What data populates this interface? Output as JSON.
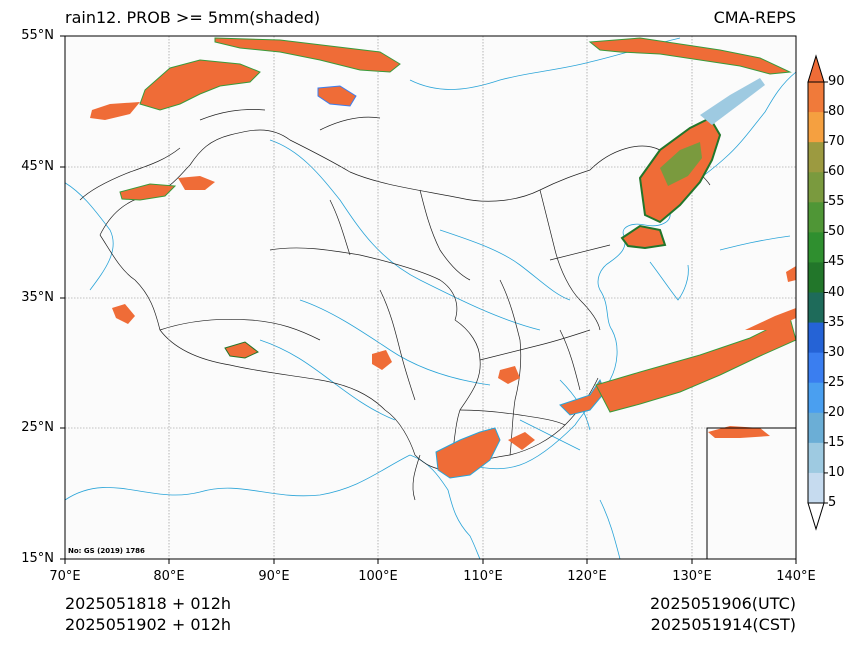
{
  "header": {
    "title": "rain12. PROB >= 5mm(shaded)",
    "model": "CMA-REPS"
  },
  "map": {
    "lat_ticks": [
      "55°N",
      "45°N",
      "35°N",
      "25°N",
      "15°N"
    ],
    "lon_ticks": [
      "70°E",
      "80°E",
      "90°E",
      "100°E",
      "110°E",
      "120°E",
      "130°E",
      "140°E"
    ],
    "extent": {
      "lon": [
        70,
        140
      ],
      "lat": [
        15,
        55
      ]
    },
    "gridlines": true,
    "map_note": "No: GS (2019) 1786",
    "inset": "South China Sea islands",
    "shaded_regions": [
      {
        "name": "Central Siberia / Mongolia north",
        "prob": "90"
      },
      {
        "name": "Kazakhstan",
        "prob": "90"
      },
      {
        "name": "Northeast China / Korea",
        "prob": "45-90"
      },
      {
        "name": "Guangxi / Hainan",
        "prob": "90"
      },
      {
        "name": "East China Sea band",
        "prob": "90"
      },
      {
        "name": "Tibetan Plateau scattered",
        "prob": "5-90"
      }
    ]
  },
  "footer": {
    "init_utc": "2025051818  +  012h",
    "init_cst": "2025051902  +  012h",
    "valid_utc": "2025051906(UTC)",
    "valid_cst": "2025051914(CST)"
  },
  "colorbar": {
    "levels": [
      "5",
      "10",
      "15",
      "20",
      "25",
      "30",
      "35",
      "40",
      "45",
      "50",
      "55",
      "60",
      "70",
      "80",
      "90"
    ],
    "colors": [
      "#deebf7",
      "#c6dbef",
      "#9ecae1",
      "#6baed6",
      "#4a9ff0",
      "#3a7ef0",
      "#2563d6",
      "#1e6b5a",
      "#22762a",
      "#2f8f2f",
      "#4f9636",
      "#7a9a3e",
      "#9c9a40",
      "#f5a040",
      "#f07a3a",
      "#ef6c37"
    ],
    "over_color": "#ef6c37",
    "under_color": "#ffffff"
  }
}
